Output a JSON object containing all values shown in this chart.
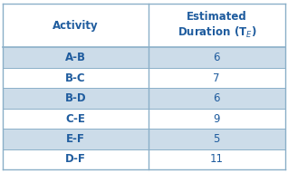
{
  "title_row": [
    "Activity",
    "Estimated\nDuration (T$_E$)"
  ],
  "rows": [
    [
      "A-B",
      "6"
    ],
    [
      "B-C",
      "7"
    ],
    [
      "B-D",
      "6"
    ],
    [
      "C-E",
      "9"
    ],
    [
      "E-F",
      "5"
    ],
    [
      "D-F",
      "11"
    ]
  ],
  "header_bg": "#ffffff",
  "row_bg_odd": "#ccdce9",
  "row_bg_even": "#ffffff",
  "header_text_color": "#1f5c9e",
  "row_text_color": "#1f5c9e",
  "border_color": "#8aafc8",
  "col_split": 0.515,
  "figsize": [
    3.18,
    1.91
  ],
  "dpi": 100
}
